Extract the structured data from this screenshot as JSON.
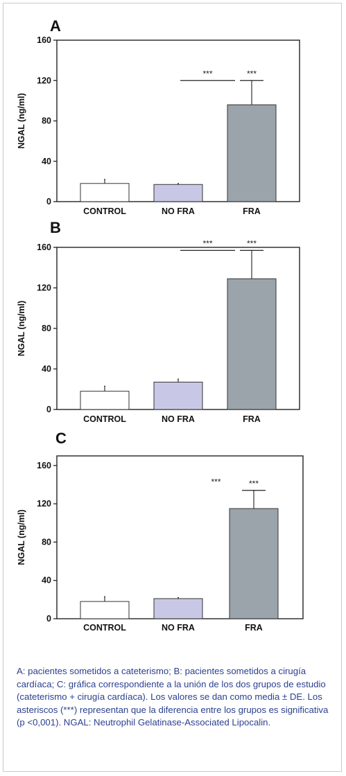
{
  "chart_data": [
    {
      "type": "bar",
      "panel_label": "A",
      "categories": [
        "CONTROL",
        "NO FRA",
        "FRA"
      ],
      "values": [
        18,
        17,
        96
      ],
      "error": [
        4,
        1,
        24
      ],
      "ylabel": "NGAL (ng/ml)",
      "ylim": [
        0,
        160
      ],
      "yticks": [
        0,
        40,
        80,
        120,
        160
      ],
      "bar_colors": [
        "#ffffff",
        "#c8c8e6",
        "#9aa4aa"
      ],
      "annotations": [
        {
          "text": "***",
          "type": "bracket",
          "from": 1,
          "to": 2,
          "y": 120
        },
        {
          "text": "***",
          "type": "cap",
          "at": 2,
          "y": 120
        }
      ],
      "grid": false
    },
    {
      "type": "bar",
      "panel_label": "B",
      "categories": [
        "CONTROL",
        "NO FRA",
        "FRA"
      ],
      "values": [
        18,
        27,
        129
      ],
      "error": [
        5,
        3,
        28
      ],
      "ylabel": "NGAL (ng/ml)",
      "ylim": [
        0,
        160
      ],
      "yticks": [
        0,
        40,
        80,
        120,
        160
      ],
      "bar_colors": [
        "#ffffff",
        "#c8c8e6",
        "#9aa4aa"
      ],
      "annotations": [
        {
          "text": "***",
          "type": "bracket",
          "from": 1,
          "to": 2,
          "y": 157
        },
        {
          "text": "***",
          "type": "cap",
          "at": 2,
          "y": 157
        }
      ],
      "grid": false
    },
    {
      "type": "bar",
      "panel_label": "C",
      "categories": [
        "CONTROL",
        "NO FRA",
        "FRA"
      ],
      "values": [
        18,
        21,
        115
      ],
      "error": [
        5,
        1,
        19
      ],
      "ylabel": "NGAL (ng/ml)",
      "ylim": [
        0,
        170
      ],
      "yticks": [
        0,
        40,
        80,
        120,
        160
      ],
      "bar_colors": [
        "#ffffff",
        "#c8c8e6",
        "#9aa4aa"
      ],
      "annotations": [
        {
          "text": "***",
          "type": "text",
          "at": 1.5,
          "y": 140
        },
        {
          "text": "***",
          "type": "cap",
          "at": 2,
          "y": 134
        }
      ],
      "grid": false
    }
  ],
  "caption": "A: pacientes sometidos a cateterismo; B: pacientes sometidos a cirugía cardíaca; C: gráfica correspondiente a la unión de los dos grupos de estudio (cateterismo + cirugía cardíaca). Los valores se dan como media ± DE. Los asteriscos (***) representan que la diferencia entre los grupos es significativa (p  <0,001). NGAL: Neutrophil Gelatinase-Associated Lipocalin."
}
